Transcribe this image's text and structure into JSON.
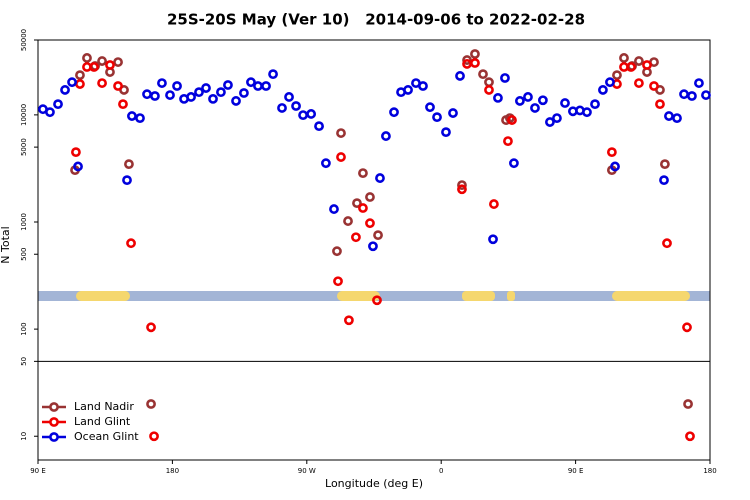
{
  "chart_data": {
    "type": "scatter",
    "title": "25S-20S May (Ver 10)   2014-09-06 to 2022-02-28",
    "xlabel": "Longitude (deg E)",
    "ylabel": "N Total",
    "xlim": [
      90,
      540
    ],
    "xticks": [
      {
        "value": 90,
        "label": "90 E"
      },
      180,
      {
        "value": 270,
        "label": "90 W"
      },
      {
        "value": 360,
        "label": "0"
      },
      {
        "value": 450,
        "label": "90 E"
      },
      {
        "value": 540,
        "label": "180"
      }
    ],
    "ylim": [
      6,
      50000
    ],
    "yticks": [
      10,
      50,
      100,
      500,
      1000,
      5000,
      10000,
      50000
    ],
    "log_y": true,
    "hline": 50,
    "legend": "lower left",
    "series": [
      {
        "name": "Land Nadir",
        "color": "#993333",
        "x": [
          114.8,
          118.1,
          122.8,
          128.2,
          132.9,
          138.2,
          143.6,
          147.6,
          150.9,
          165.7,
          290.2,
          292.9,
          297.6,
          303.6,
          307.6,
          312.3,
          317.7,
          373.9,
          377.3,
          382.6,
          388.0,
          392.0,
          403.4,
          406.0,
          474.3,
          477.7,
          482.4,
          487.8,
          492.4,
          497.8,
          502.5,
          506.5,
          509.8,
          525.3
        ],
        "values": [
          3050,
          23500,
          34000,
          28600,
          31800,
          25100,
          31100,
          17100,
          3470,
          20,
          534,
          6760,
          1020,
          1500,
          2860,
          1710,
          754,
          2210,
          32500,
          37000,
          24000,
          20200,
          8940,
          9330,
          3050,
          23500,
          34000,
          28600,
          31800,
          25100,
          31100,
          17100,
          3470,
          20
        ]
      },
      {
        "name": "Land Glint",
        "color": "#ee0000",
        "x": [
          115.4,
          118.1,
          122.8,
          127.5,
          132.9,
          138.2,
          143.6,
          146.9,
          152.3,
          165.7,
          167.7,
          290.9,
          292.9,
          298.2,
          302.9,
          307.6,
          312.3,
          317.0,
          373.9,
          377.3,
          382.6,
          392.0,
          395.3,
          404.7,
          407.4,
          474.3,
          477.7,
          482.4,
          487.1,
          492.4,
          497.8,
          502.5,
          506.5,
          511.2,
          524.6,
          526.6
        ],
        "values": [
          4490,
          19400,
          28000,
          28000,
          19800,
          29200,
          18600,
          12600,
          634,
          104,
          10,
          280,
          4040,
          121,
          721,
          1350,
          975,
          186,
          2020,
          29900,
          30500,
          17100,
          1470,
          5690,
          8940,
          4490,
          19400,
          28000,
          28000,
          19800,
          29200,
          18600,
          12600,
          634,
          104,
          10
        ]
      },
      {
        "name": "Ocean Glint",
        "color": "#0000dd",
        "x": [
          93.3,
          98.0,
          103.4,
          108.1,
          112.8,
          116.8,
          149.6,
          152.9,
          158.3,
          163.0,
          168.3,
          173.0,
          178.4,
          183.1,
          187.8,
          192.5,
          197.8,
          202.5,
          207.2,
          212.5,
          217.2,
          222.6,
          227.9,
          232.6,
          237.3,
          242.7,
          247.4,
          253.4,
          258.1,
          262.8,
          267.5,
          272.9,
          278.2,
          282.8,
          288.2,
          314.3,
          319.0,
          323.0,
          328.4,
          333.1,
          337.8,
          343.1,
          347.8,
          352.5,
          357.2,
          363.2,
          367.9,
          372.6,
          394.7,
          398.0,
          402.7,
          408.7,
          412.7,
          418.1,
          422.8,
          428.1,
          432.8,
          437.5,
          442.9,
          448.2,
          452.9,
          457.6,
          463.0,
          468.3,
          473.0,
          476.4,
          509.2,
          512.5,
          517.9,
          522.6,
          527.9,
          532.6,
          537.3
        ],
        "values": [
          11300,
          10600,
          12600,
          17100,
          20200,
          3300,
          2460,
          9750,
          9330,
          15600,
          15000,
          19800,
          15300,
          18600,
          14100,
          14700,
          16300,
          17800,
          14100,
          16300,
          19000,
          13500,
          16000,
          20200,
          18600,
          18600,
          24000,
          11600,
          14700,
          12100,
          9950,
          10200,
          7850,
          3540,
          1320,
          594,
          2570,
          6340,
          10600,
          16300,
          17100,
          19800,
          18600,
          11800,
          9530,
          6900,
          10400,
          23100,
          690,
          14400,
          22100,
          3540,
          13500,
          14700,
          11600,
          13700,
          8570,
          9330,
          12900,
          10800,
          11000,
          10600,
          12600,
          17100,
          20200,
          3300,
          2460,
          9750,
          9330,
          15600,
          15000,
          19800,
          15300
        ]
      }
    ]
  }
}
